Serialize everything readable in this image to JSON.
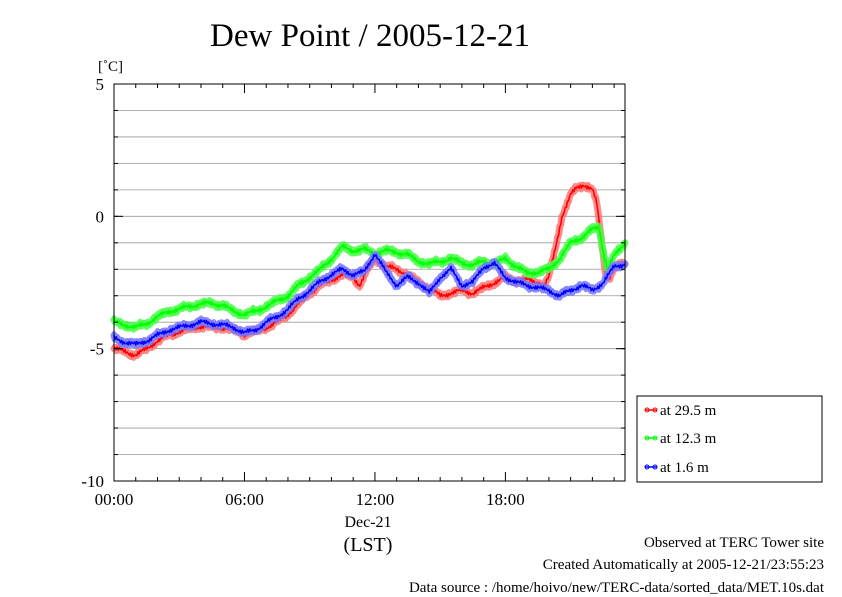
{
  "chart_data": {
    "type": "line",
    "title": "Dew Point / 2005-12-21",
    "ylabel": "[˚C]",
    "xlabel": "(LST)",
    "date_label": "Dec-21",
    "ylim": [
      -10,
      5
    ],
    "xlim": [
      0,
      23.5
    ],
    "y_ticks": [
      5,
      0,
      -5,
      -10
    ],
    "x_ticks": [
      {
        "value": 0,
        "label": "00:00"
      },
      {
        "value": 6,
        "label": "06:00"
      },
      {
        "value": 12,
        "label": "12:00"
      },
      {
        "value": 18,
        "label": "18:00"
      }
    ],
    "grid": true,
    "legend_position": "lower-right, outside plot",
    "series": [
      {
        "name": "at 29.5 m",
        "color": "#ff0000",
        "points": [
          [
            0.0,
            -5.0
          ],
          [
            0.5,
            -5.1
          ],
          [
            1.0,
            -5.25
          ],
          [
            1.5,
            -5.0
          ],
          [
            2.0,
            -4.7
          ],
          [
            2.5,
            -4.5
          ],
          [
            3.0,
            -4.35
          ],
          [
            3.5,
            -4.25
          ],
          [
            4.0,
            -4.15
          ],
          [
            4.5,
            -4.2
          ],
          [
            5.0,
            -4.2
          ],
          [
            5.5,
            -4.3
          ],
          [
            6.0,
            -4.45
          ],
          [
            6.5,
            -4.35
          ],
          [
            7.0,
            -4.2
          ],
          [
            7.5,
            -4.0
          ],
          [
            8.0,
            -3.7
          ],
          [
            8.5,
            -3.3
          ],
          [
            9.0,
            -2.9
          ],
          [
            9.5,
            -2.6
          ],
          [
            10.0,
            -2.4
          ],
          [
            10.5,
            -2.2
          ],
          [
            11.0,
            -2.3
          ],
          [
            11.3,
            -2.6
          ],
          [
            11.6,
            -2.1
          ],
          [
            12.0,
            -1.6
          ],
          [
            12.5,
            -1.9
          ],
          [
            13.0,
            -2.0
          ],
          [
            13.5,
            -2.2
          ],
          [
            14.0,
            -2.5
          ],
          [
            14.5,
            -2.7
          ],
          [
            15.0,
            -3.0
          ],
          [
            15.5,
            -2.9
          ],
          [
            16.0,
            -2.8
          ],
          [
            16.5,
            -2.9
          ],
          [
            17.0,
            -2.7
          ],
          [
            17.5,
            -2.5
          ],
          [
            18.0,
            -2.3
          ],
          [
            18.5,
            -2.45
          ],
          [
            19.0,
            -2.4
          ],
          [
            19.5,
            -2.5
          ],
          [
            19.8,
            -2.6
          ],
          [
            20.0,
            -2.3
          ],
          [
            20.3,
            -1.2
          ],
          [
            20.6,
            0.0
          ],
          [
            21.0,
            0.8
          ],
          [
            21.3,
            1.1
          ],
          [
            21.6,
            1.2
          ],
          [
            22.0,
            1.0
          ],
          [
            22.2,
            0.5
          ],
          [
            22.4,
            -0.8
          ],
          [
            22.6,
            -2.1
          ],
          [
            22.8,
            -2.3
          ],
          [
            23.0,
            -2.0
          ],
          [
            23.3,
            -1.8
          ],
          [
            23.5,
            -1.8
          ]
        ]
      },
      {
        "name": "at 12.3 m",
        "color": "#00ff00",
        "points": [
          [
            0.0,
            -4.0
          ],
          [
            0.5,
            -4.1
          ],
          [
            1.0,
            -4.2
          ],
          [
            1.5,
            -4.05
          ],
          [
            2.0,
            -3.8
          ],
          [
            2.5,
            -3.6
          ],
          [
            3.0,
            -3.5
          ],
          [
            3.5,
            -3.4
          ],
          [
            4.0,
            -3.3
          ],
          [
            4.5,
            -3.3
          ],
          [
            5.0,
            -3.35
          ],
          [
            5.5,
            -3.6
          ],
          [
            6.0,
            -3.7
          ],
          [
            6.5,
            -3.6
          ],
          [
            7.0,
            -3.4
          ],
          [
            7.5,
            -3.2
          ],
          [
            8.0,
            -3.0
          ],
          [
            8.5,
            -2.6
          ],
          [
            9.0,
            -2.3
          ],
          [
            9.5,
            -2.0
          ],
          [
            10.0,
            -1.6
          ],
          [
            10.5,
            -1.15
          ],
          [
            11.0,
            -1.3
          ],
          [
            11.5,
            -1.25
          ],
          [
            12.0,
            -1.4
          ],
          [
            12.5,
            -1.3
          ],
          [
            13.0,
            -1.35
          ],
          [
            13.5,
            -1.45
          ],
          [
            14.0,
            -1.7
          ],
          [
            14.5,
            -1.8
          ],
          [
            15.0,
            -1.7
          ],
          [
            15.5,
            -1.6
          ],
          [
            16.0,
            -1.75
          ],
          [
            16.5,
            -1.85
          ],
          [
            17.0,
            -1.7
          ],
          [
            17.5,
            -1.8
          ],
          [
            18.0,
            -1.6
          ],
          [
            18.5,
            -1.9
          ],
          [
            19.0,
            -2.15
          ],
          [
            19.5,
            -2.1
          ],
          [
            20.0,
            -2.0
          ],
          [
            20.5,
            -1.6
          ],
          [
            21.0,
            -1.0
          ],
          [
            21.5,
            -0.8
          ],
          [
            22.0,
            -0.5
          ],
          [
            22.3,
            -0.4
          ],
          [
            22.5,
            -1.3
          ],
          [
            22.7,
            -2.0
          ],
          [
            23.0,
            -1.5
          ],
          [
            23.3,
            -1.2
          ],
          [
            23.5,
            -1.0
          ]
        ]
      },
      {
        "name": "at 1.6 m",
        "color": "#0000ff",
        "points": [
          [
            0.0,
            -4.6
          ],
          [
            0.5,
            -4.75
          ],
          [
            1.0,
            -4.85
          ],
          [
            1.5,
            -4.7
          ],
          [
            2.0,
            -4.5
          ],
          [
            2.5,
            -4.3
          ],
          [
            3.0,
            -4.2
          ],
          [
            3.5,
            -4.1
          ],
          [
            4.0,
            -4.0
          ],
          [
            4.5,
            -4.05
          ],
          [
            5.0,
            -4.1
          ],
          [
            5.5,
            -4.2
          ],
          [
            6.0,
            -4.4
          ],
          [
            6.5,
            -4.3
          ],
          [
            7.0,
            -4.0
          ],
          [
            7.5,
            -3.8
          ],
          [
            8.0,
            -3.5
          ],
          [
            8.5,
            -3.1
          ],
          [
            9.0,
            -2.8
          ],
          [
            9.5,
            -2.45
          ],
          [
            10.0,
            -2.2
          ],
          [
            10.5,
            -2.0
          ],
          [
            11.0,
            -2.2
          ],
          [
            11.5,
            -2.1
          ],
          [
            12.0,
            -1.4
          ],
          [
            12.5,
            -2.1
          ],
          [
            13.0,
            -2.6
          ],
          [
            13.5,
            -2.3
          ],
          [
            14.0,
            -2.5
          ],
          [
            14.5,
            -2.9
          ],
          [
            15.0,
            -2.3
          ],
          [
            15.5,
            -2.0
          ],
          [
            16.0,
            -2.6
          ],
          [
            16.5,
            -2.5
          ],
          [
            17.0,
            -1.9
          ],
          [
            17.5,
            -1.8
          ],
          [
            18.0,
            -2.3
          ],
          [
            18.5,
            -2.5
          ],
          [
            19.0,
            -2.6
          ],
          [
            19.5,
            -2.7
          ],
          [
            20.0,
            -2.8
          ],
          [
            20.5,
            -3.0
          ],
          [
            21.0,
            -2.8
          ],
          [
            21.5,
            -2.6
          ],
          [
            22.0,
            -2.8
          ],
          [
            22.5,
            -2.5
          ],
          [
            23.0,
            -1.9
          ],
          [
            23.5,
            -1.8
          ]
        ]
      }
    ]
  },
  "footer": {
    "site": "Observed at TERC Tower site",
    "created": "Created Automatically at 2005-12-21/23:55:23",
    "source": "Data source : /home/hoivo/new/TERC-data/sorted_data/MET.10s.dat"
  }
}
